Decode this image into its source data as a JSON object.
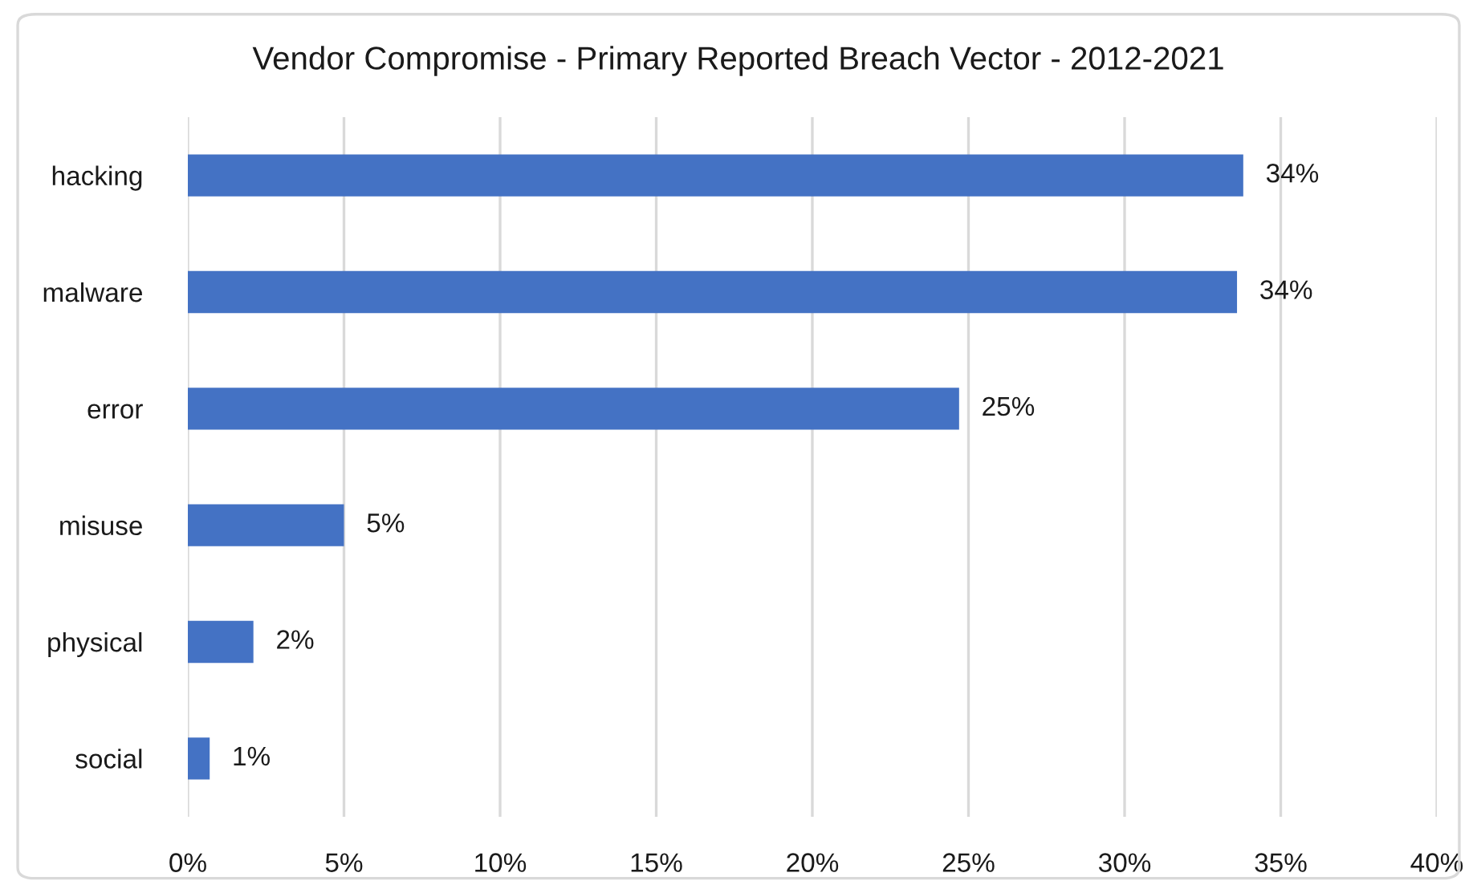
{
  "chart_data": {
    "type": "bar",
    "orientation": "horizontal",
    "title": "Vendor Compromise - Primary Reported Breach Vector - 2012-2021",
    "categories": [
      "hacking",
      "malware",
      "error",
      "misuse",
      "physical",
      "social"
    ],
    "values": [
      33.8,
      33.6,
      24.7,
      5.0,
      2.1,
      0.7
    ],
    "value_labels": [
      "34%",
      "34%",
      "25%",
      "5%",
      "2%",
      "1%"
    ],
    "color": "#4472c4",
    "xlim": [
      0,
      40
    ],
    "xticks": [
      {
        "value": 0,
        "label": "0%"
      },
      {
        "value": 5,
        "label": "5%"
      },
      {
        "value": 10,
        "label": "10%"
      },
      {
        "value": 15,
        "label": "15%"
      },
      {
        "value": 20,
        "label": "20%"
      },
      {
        "value": 25,
        "label": "25%"
      },
      {
        "value": 30,
        "label": "30%"
      },
      {
        "value": 35,
        "label": "35%"
      },
      {
        "value": 40,
        "label": "40%"
      }
    ],
    "grid": "x"
  }
}
